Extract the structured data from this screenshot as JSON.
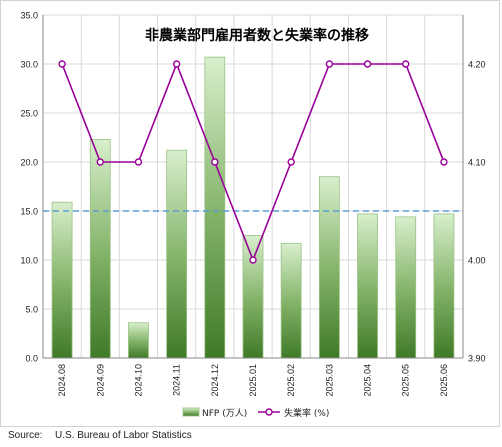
{
  "chart_data": {
    "type": "bar+line",
    "title": "非農業部門雇用者数と失業率の推移",
    "categories": [
      "2024.08",
      "2024.09",
      "2024.10",
      "2024.11",
      "2024.12",
      "2025.01",
      "2025.02",
      "2025.03",
      "2025.04",
      "2025.05",
      "2025.06"
    ],
    "series": [
      {
        "name": "NFP (万人)",
        "type": "bar",
        "axis": "left",
        "values": [
          15.9,
          22.3,
          3.6,
          21.2,
          30.7,
          12.5,
          11.7,
          18.5,
          14.7,
          14.4,
          14.7
        ]
      },
      {
        "name": "失業率 (%)",
        "type": "line",
        "axis": "right",
        "values": [
          4.2,
          4.1,
          4.1,
          4.2,
          4.1,
          4.0,
          4.1,
          4.2,
          4.2,
          4.2,
          4.1
        ]
      }
    ],
    "reference_line": {
      "axis": "left",
      "value": 15.0,
      "style": "dashed",
      "color": "#5b9bd5"
    },
    "y_left": {
      "min": 0,
      "max": 35,
      "step": 5,
      "ticks": [
        "0.0",
        "5.0",
        "10.0",
        "15.0",
        "20.0",
        "25.0",
        "30.0",
        "35.0"
      ]
    },
    "y_right": {
      "min": 3.9,
      "max": 4.25,
      "ticks": [
        "3.90",
        "4.00",
        "4.10",
        "4.20"
      ]
    },
    "grid": true,
    "legend": "bottom",
    "colors": {
      "bar_dark": "#3f7a28",
      "bar_light": "#d8efcc",
      "bar_border": "#9ac285",
      "line": "#990099",
      "marker_fill": "#ffffff",
      "grid": "#d9d9d9",
      "refline": "#5b9bd5"
    }
  },
  "source": {
    "label": "Source:",
    "text": "U.S. Bureau of Labor Statistics"
  }
}
